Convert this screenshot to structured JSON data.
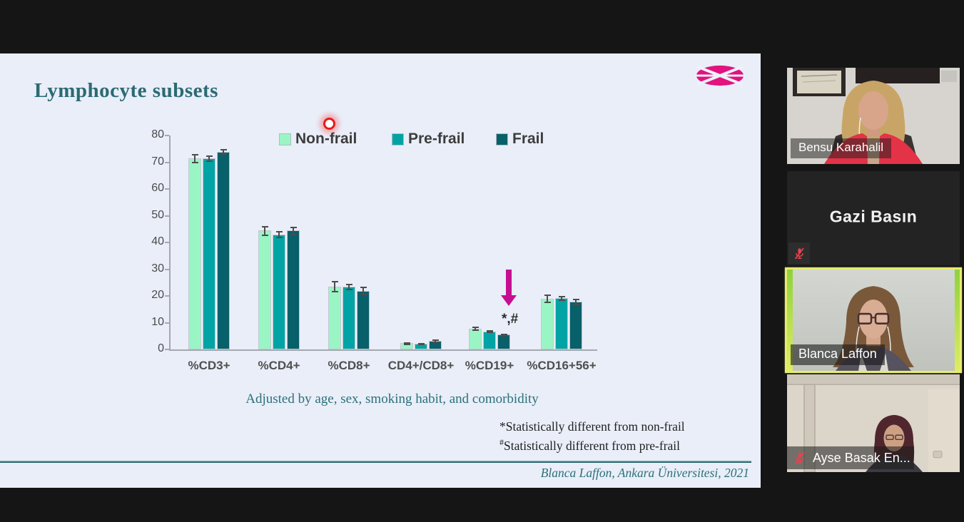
{
  "slide": {
    "title": "Lymphocyte subsets",
    "adjusted_note": "Adjusted by age, sex, smoking habit, and comorbidity",
    "footnotes": [
      {
        "symbol": "*",
        "text": "Statistically different from non-frail"
      },
      {
        "symbol": "#",
        "text": "Statistically different from pre-frail"
      }
    ],
    "citation": "Blanca Laffon, Ankara Üniversitesi, 2021",
    "background": "#e9eef9",
    "accent_teal": "#2c7078",
    "logo_color": "#e2127e"
  },
  "chart_data": {
    "type": "bar",
    "title": "",
    "categories": [
      "%CD3+",
      "%CD4+",
      "%CD8+",
      "CD4+/CD8+",
      "%CD19+",
      "%CD16+56+"
    ],
    "series": [
      {
        "name": "Non-frail",
        "color": "#9af5c4",
        "values": [
          71.5,
          44.5,
          23.5,
          2.3,
          7.8,
          19.0
        ],
        "errors": [
          1.7,
          1.7,
          2.0,
          0.3,
          0.7,
          1.5
        ]
      },
      {
        "name": "Pre-frail",
        "color": "#02a3a4",
        "values": [
          71.5,
          43.0,
          23.5,
          2.2,
          6.8,
          19.3
        ],
        "errors": [
          1.0,
          1.2,
          1.0,
          0.3,
          0.4,
          0.8
        ]
      },
      {
        "name": "Frail",
        "color": "#07606a",
        "values": [
          74.0,
          44.5,
          22.0,
          3.2,
          5.5,
          17.8
        ],
        "errors": [
          1.0,
          1.5,
          1.4,
          0.6,
          0.4,
          1.1
        ]
      }
    ],
    "ylim": [
      0,
      80
    ],
    "yticks": [
      0,
      10,
      20,
      30,
      40,
      50,
      60,
      70,
      80
    ],
    "grid": false,
    "legend_position": "top",
    "annotation": {
      "text": "*,#",
      "category_index": 4,
      "series_index": 2,
      "arrow_color": "#c50f90"
    }
  },
  "laser_pointer": {
    "color": "#e01d1d"
  },
  "participants": [
    {
      "name": "Bensu Karahalil",
      "muted": false,
      "has_video": true,
      "active_speaker": false
    },
    {
      "name": "Gazi Basın",
      "muted": true,
      "has_video": false,
      "active_speaker": false
    },
    {
      "name": "Blanca Laffon",
      "muted": false,
      "has_video": true,
      "active_speaker": true
    },
    {
      "name": "Ayse Basak En...",
      "muted": true,
      "has_video": true,
      "active_speaker": false
    }
  ]
}
